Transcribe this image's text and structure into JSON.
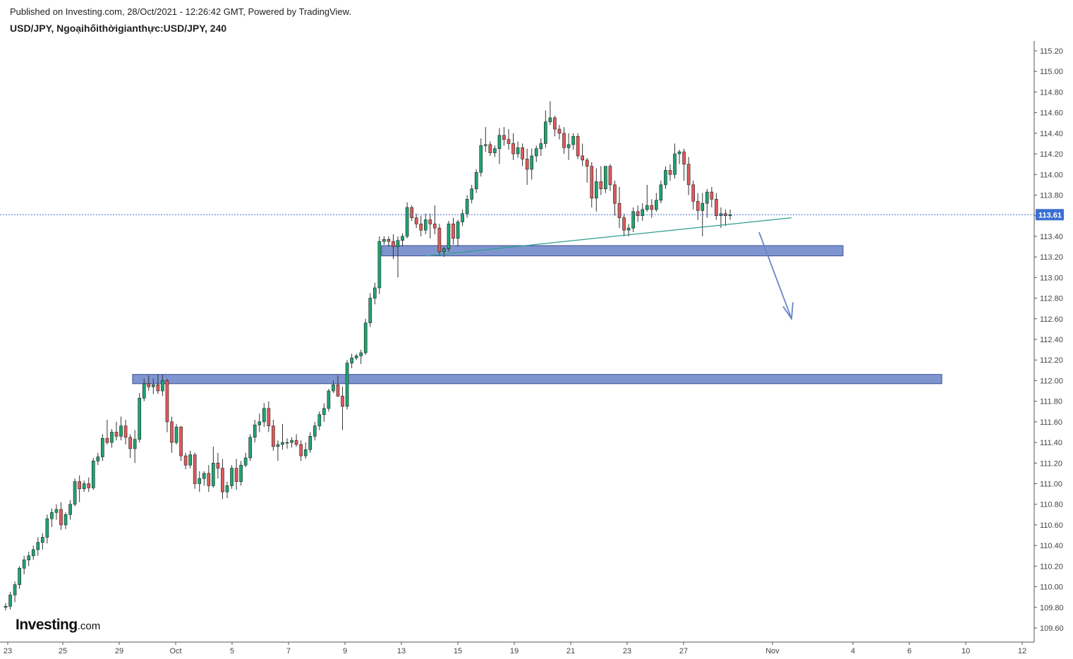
{
  "header": {
    "published": "Published on Investing.com, 28/Oct/2021 - 12:26:42 GMT, Powered by TradingView.",
    "title": "USD/JPY, Ngoạihốithờigianthực:USD/JPY, 240"
  },
  "logo": {
    "brand": "Investing",
    "suffix": ".com"
  },
  "colors": {
    "up": "#26a69a",
    "up_body": "#1ea56f",
    "down": "#e05a5a",
    "zone": "#7f95cf",
    "zone_border": "#3b4f96",
    "trendline": "#2aa08a",
    "arrow": "#6a86c8",
    "last_price": "#3b6fd4"
  },
  "chart_data": {
    "type": "candlestick",
    "symbol": "USD/JPY",
    "timeframe": "240",
    "ylim": [
      109.5,
      115.3
    ],
    "y_ticks": [
      "115.20",
      "115.00",
      "114.80",
      "114.60",
      "114.40",
      "114.20",
      "114.00",
      "113.80",
      "113.60",
      "113.40",
      "113.20",
      "113.00",
      "112.80",
      "112.60",
      "112.40",
      "112.20",
      "112.00",
      "111.80",
      "111.60",
      "111.40",
      "111.20",
      "111.00",
      "110.80",
      "110.60",
      "110.40",
      "110.20",
      "110.00",
      "109.80",
      "109.60"
    ],
    "x_ticks": [
      "23",
      "25",
      "29",
      "Oct",
      "5",
      "7",
      "9",
      "13",
      "15",
      "19",
      "21",
      "23",
      "27",
      "Nov",
      "4",
      "6",
      "10",
      "12"
    ],
    "last_price": "113.61",
    "candles": [
      [
        109.8,
        109.84,
        109.77,
        109.81
      ],
      [
        109.81,
        109.95,
        109.78,
        109.92
      ],
      [
        109.92,
        110.05,
        109.85,
        110.02
      ],
      [
        110.02,
        110.2,
        109.98,
        110.18
      ],
      [
        110.18,
        110.3,
        110.12,
        110.26
      ],
      [
        110.26,
        110.34,
        110.2,
        110.3
      ],
      [
        110.3,
        110.4,
        110.26,
        110.36
      ],
      [
        110.36,
        110.48,
        110.3,
        110.43
      ],
      [
        110.43,
        110.52,
        110.36,
        110.48
      ],
      [
        110.48,
        110.7,
        110.42,
        110.66
      ],
      [
        110.66,
        110.76,
        110.58,
        110.72
      ],
      [
        110.72,
        110.8,
        110.65,
        110.75
      ],
      [
        110.75,
        110.82,
        110.55,
        110.6
      ],
      [
        110.6,
        110.72,
        110.56,
        110.7
      ],
      [
        110.7,
        110.84,
        110.65,
        110.8
      ],
      [
        110.8,
        111.05,
        110.78,
        111.02
      ],
      [
        111.02,
        111.08,
        110.82,
        110.95
      ],
      [
        110.95,
        111.03,
        110.92,
        111.0
      ],
      [
        111.0,
        111.06,
        110.92,
        110.96
      ],
      [
        110.96,
        111.25,
        110.94,
        111.22
      ],
      [
        111.22,
        111.3,
        111.18,
        111.26
      ],
      [
        111.26,
        111.48,
        111.22,
        111.44
      ],
      [
        111.44,
        111.62,
        111.38,
        111.4
      ],
      [
        111.4,
        111.53,
        111.35,
        111.5
      ],
      [
        111.5,
        111.6,
        111.42,
        111.46
      ],
      [
        111.46,
        111.65,
        111.42,
        111.56
      ],
      [
        111.56,
        111.62,
        111.38,
        111.45
      ],
      [
        111.45,
        111.48,
        111.25,
        111.34
      ],
      [
        111.34,
        111.52,
        111.2,
        111.43
      ],
      [
        111.43,
        111.88,
        111.4,
        111.83
      ],
      [
        111.83,
        112.02,
        111.8,
        111.97
      ],
      [
        111.97,
        112.05,
        111.9,
        111.94
      ],
      [
        111.94,
        112.02,
        111.87,
        111.96
      ],
      [
        111.96,
        112.06,
        111.87,
        111.9
      ],
      [
        111.9,
        112.06,
        111.85,
        112.0
      ],
      [
        112.0,
        112.02,
        111.5,
        111.6
      ],
      [
        111.6,
        111.65,
        111.3,
        111.4
      ],
      [
        111.4,
        111.58,
        111.38,
        111.55
      ],
      [
        111.55,
        111.56,
        111.22,
        111.27
      ],
      [
        111.27,
        111.3,
        111.14,
        111.18
      ],
      [
        111.18,
        111.32,
        111.15,
        111.28
      ],
      [
        111.28,
        111.3,
        110.95,
        111.0
      ],
      [
        111.0,
        111.12,
        110.92,
        111.05
      ],
      [
        111.05,
        111.12,
        110.98,
        111.1
      ],
      [
        111.1,
        111.18,
        110.92,
        110.98
      ],
      [
        110.98,
        111.36,
        110.96,
        111.2
      ],
      [
        111.2,
        111.3,
        111.05,
        111.15
      ],
      [
        111.15,
        111.24,
        110.85,
        110.92
      ],
      [
        110.92,
        111.02,
        110.86,
        110.98
      ],
      [
        110.98,
        111.18,
        110.95,
        111.15
      ],
      [
        111.15,
        111.24,
        110.94,
        111.02
      ],
      [
        111.02,
        111.22,
        110.98,
        111.18
      ],
      [
        111.18,
        111.3,
        111.16,
        111.25
      ],
      [
        111.25,
        111.48,
        111.22,
        111.45
      ],
      [
        111.45,
        111.62,
        111.4,
        111.57
      ],
      [
        111.57,
        111.68,
        111.5,
        111.6
      ],
      [
        111.6,
        111.78,
        111.55,
        111.73
      ],
      [
        111.73,
        111.8,
        111.5,
        111.56
      ],
      [
        111.56,
        111.62,
        111.32,
        111.36
      ],
      [
        111.36,
        111.42,
        111.22,
        111.38
      ],
      [
        111.38,
        111.58,
        111.33,
        111.4
      ],
      [
        111.4,
        111.44,
        111.34,
        111.4
      ],
      [
        111.4,
        111.45,
        111.35,
        111.42
      ],
      [
        111.42,
        111.48,
        111.36,
        111.38
      ],
      [
        111.38,
        111.42,
        111.22,
        111.27
      ],
      [
        111.27,
        111.4,
        111.24,
        111.33
      ],
      [
        111.33,
        111.5,
        111.3,
        111.46
      ],
      [
        111.46,
        111.6,
        111.42,
        111.56
      ],
      [
        111.56,
        111.7,
        111.52,
        111.67
      ],
      [
        111.67,
        111.78,
        111.6,
        111.73
      ],
      [
        111.73,
        111.92,
        111.7,
        111.9
      ],
      [
        111.9,
        112.0,
        111.88,
        111.96
      ],
      [
        111.96,
        112.05,
        111.84,
        111.85
      ],
      [
        111.85,
        111.94,
        111.52,
        111.75
      ],
      [
        111.75,
        112.2,
        111.72,
        112.17
      ],
      [
        112.17,
        112.26,
        112.12,
        112.22
      ],
      [
        112.22,
        112.26,
        112.2,
        112.24
      ],
      [
        112.24,
        112.3,
        112.16,
        112.27
      ],
      [
        112.27,
        112.6,
        112.25,
        112.56
      ],
      [
        112.56,
        112.85,
        112.52,
        112.8
      ],
      [
        112.8,
        112.95,
        112.74,
        112.9
      ],
      [
        112.9,
        113.4,
        112.84,
        113.35
      ],
      [
        113.35,
        113.4,
        113.32,
        113.37
      ],
      [
        113.37,
        113.4,
        113.3,
        113.35
      ],
      [
        113.35,
        113.42,
        113.18,
        113.3
      ],
      [
        113.3,
        113.4,
        113.0,
        113.36
      ],
      [
        113.36,
        113.43,
        113.3,
        113.4
      ],
      [
        113.4,
        113.73,
        113.38,
        113.68
      ],
      [
        113.68,
        113.7,
        113.55,
        113.58
      ],
      [
        113.58,
        113.62,
        113.48,
        113.52
      ],
      [
        113.52,
        113.6,
        113.4,
        113.46
      ],
      [
        113.46,
        113.62,
        113.42,
        113.56
      ],
      [
        113.56,
        113.62,
        113.38,
        113.52
      ],
      [
        113.52,
        113.7,
        113.42,
        113.48
      ],
      [
        113.48,
        113.52,
        113.21,
        113.25
      ],
      [
        113.25,
        113.3,
        113.2,
        113.28
      ],
      [
        113.28,
        113.55,
        113.25,
        113.52
      ],
      [
        113.52,
        113.58,
        113.32,
        113.38
      ],
      [
        113.38,
        113.56,
        113.3,
        113.54
      ],
      [
        113.54,
        113.66,
        113.5,
        113.62
      ],
      [
        113.62,
        113.8,
        113.58,
        113.76
      ],
      [
        113.76,
        113.9,
        113.72,
        113.86
      ],
      [
        113.86,
        114.05,
        113.82,
        114.02
      ],
      [
        114.02,
        114.35,
        113.98,
        114.28
      ],
      [
        114.28,
        114.46,
        114.22,
        114.29
      ],
      [
        114.29,
        114.32,
        114.18,
        114.21
      ],
      [
        114.21,
        114.28,
        114.17,
        114.25
      ],
      [
        114.25,
        114.45,
        114.1,
        114.38
      ],
      [
        114.38,
        114.46,
        114.28,
        114.34
      ],
      [
        114.34,
        114.44,
        114.24,
        114.3
      ],
      [
        114.3,
        114.4,
        114.14,
        114.2
      ],
      [
        114.2,
        114.32,
        114.16,
        114.26
      ],
      [
        114.26,
        114.3,
        114.08,
        114.15
      ],
      [
        114.15,
        114.25,
        113.9,
        114.05
      ],
      [
        114.05,
        114.25,
        113.95,
        114.18
      ],
      [
        114.18,
        114.28,
        114.12,
        114.25
      ],
      [
        114.25,
        114.35,
        114.18,
        114.3
      ],
      [
        114.3,
        114.62,
        114.26,
        114.51
      ],
      [
        114.51,
        114.71,
        114.48,
        114.55
      ],
      [
        114.55,
        114.57,
        114.37,
        114.44
      ],
      [
        114.44,
        114.48,
        114.34,
        114.4
      ],
      [
        114.4,
        114.46,
        114.2,
        114.26
      ],
      [
        114.26,
        114.4,
        114.14,
        114.29
      ],
      [
        114.29,
        114.4,
        114.24,
        114.37
      ],
      [
        114.37,
        114.4,
        114.15,
        114.18
      ],
      [
        114.18,
        114.3,
        114.08,
        114.14
      ],
      [
        114.14,
        114.16,
        113.92,
        114.08
      ],
      [
        114.08,
        114.12,
        113.68,
        113.77
      ],
      [
        113.77,
        114.06,
        113.64,
        113.93
      ],
      [
        113.93,
        114.08,
        113.8,
        113.86
      ],
      [
        113.86,
        114.08,
        113.82,
        114.08
      ],
      [
        114.08,
        114.1,
        113.84,
        113.9
      ],
      [
        113.9,
        113.94,
        113.6,
        113.72
      ],
      [
        113.72,
        113.88,
        113.48,
        113.58
      ],
      [
        113.58,
        113.62,
        113.4,
        113.46
      ],
      [
        113.46,
        113.52,
        113.4,
        113.48
      ],
      [
        113.48,
        113.68,
        113.44,
        113.64
      ],
      [
        113.64,
        113.7,
        113.54,
        113.6
      ],
      [
        113.6,
        113.72,
        113.55,
        113.66
      ],
      [
        113.66,
        113.9,
        113.64,
        113.7
      ],
      [
        113.7,
        113.76,
        113.58,
        113.66
      ],
      [
        113.66,
        113.82,
        113.64,
        113.75
      ],
      [
        113.75,
        113.94,
        113.72,
        113.9
      ],
      [
        113.9,
        114.08,
        113.86,
        114.04
      ],
      [
        114.04,
        114.1,
        113.94,
        114.0
      ],
      [
        114.0,
        114.3,
        113.96,
        114.2
      ],
      [
        114.2,
        114.24,
        114.1,
        114.22
      ],
      [
        114.22,
        114.25,
        113.94,
        114.1
      ],
      [
        114.1,
        114.17,
        113.8,
        113.9
      ],
      [
        113.9,
        113.94,
        113.66,
        113.74
      ],
      [
        113.74,
        113.82,
        113.56,
        113.65
      ],
      [
        113.65,
        113.82,
        113.4,
        113.72
      ],
      [
        113.72,
        113.86,
        113.58,
        113.83
      ],
      [
        113.83,
        113.88,
        113.68,
        113.76
      ],
      [
        113.76,
        113.82,
        113.56,
        113.6
      ],
      [
        113.6,
        113.68,
        113.48,
        113.62
      ],
      [
        113.62,
        113.66,
        113.5,
        113.6
      ],
      [
        113.6,
        113.66,
        113.56,
        113.61
      ]
    ]
  }
}
